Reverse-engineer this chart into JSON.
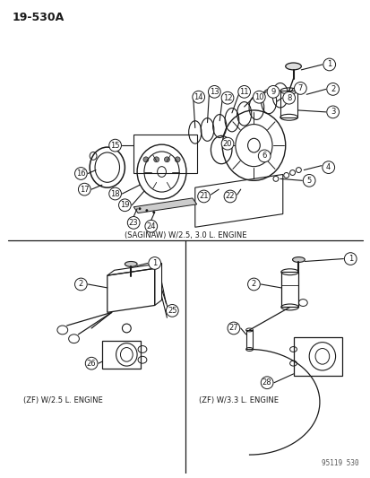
{
  "page_id": "19-530A",
  "background_color": "#ffffff",
  "line_color": "#1a1a1a",
  "text_color": "#1a1a1a",
  "fig_width": 4.14,
  "fig_height": 5.33,
  "dpi": 100,
  "watermark": "95119 530",
  "section_label_top": "(SAGINAW) W/2.5, 3.0 L. ENGINE",
  "section_label_bl": "(ZF) W/2.5 L. ENGINE",
  "section_label_br": "(ZF) W/3.3 L. ENGINE"
}
